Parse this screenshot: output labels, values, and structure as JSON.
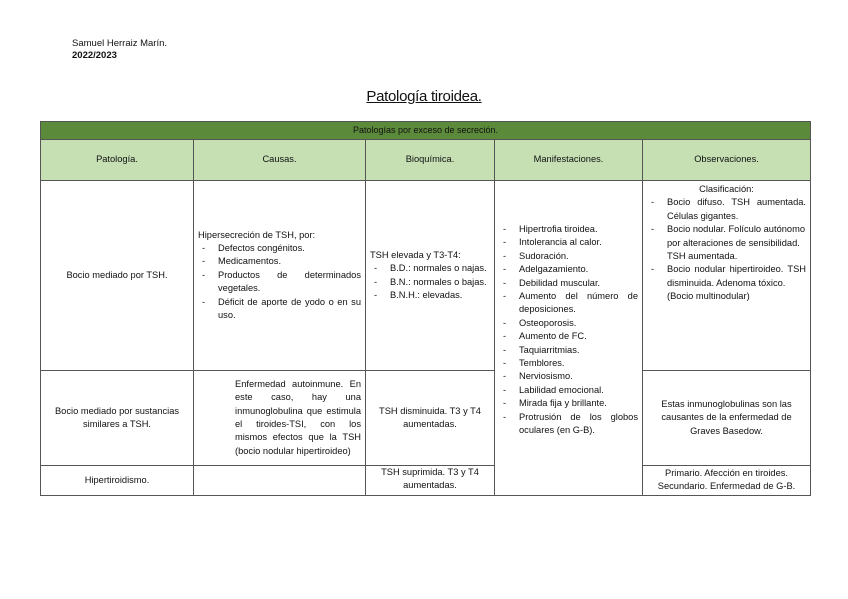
{
  "author": {
    "name": "Samuel Herraiz Marín.",
    "year": "2022/2023"
  },
  "title": "Patología tiroidea.",
  "table": {
    "banner": "Patologías por exceso de secreción.",
    "headers": [
      "Patología.",
      "Causas.",
      "Bioquímica.",
      "Manifestaciones.",
      "Observaciones."
    ],
    "colors": {
      "banner": "#5b8a3a",
      "header": "#c6e0b4"
    },
    "rows": [
      {
        "patologia": "Bocio mediado por TSH.",
        "causas_intro": "Hipersecreción de TSH, por:",
        "causas": [
          "Defectos congénitos.",
          "Medicamentos.",
          "Productos de determinados vegetales.",
          "Déficit de aporte de yodo o en su uso."
        ],
        "bioquimica_intro": "TSH elevada y T3-T4:",
        "bioquimica": [
          "B.D.: normales o najas.",
          "B.N.: normales o bajas.",
          "B.N.H.: elevadas."
        ],
        "observaciones_intro": "Clasificación:",
        "observaciones": [
          "Bocio difuso. TSH aumentada. Células gigantes.",
          "Bocio nodular. Folículo autónomo por alteraciones de sensibilidad. TSH aumentada.",
          "Bocio nodular hipertiroideo. TSH disminuida. Adenoma tóxico."
        ],
        "observaciones_note": "(Bocio multinodular)"
      },
      {
        "patologia": "Bocio mediado por sustancias similares a TSH.",
        "causas_text": "Enfermedad autoinmune. En este caso, hay una inmunoglobulina que estimula el tiroides-TSI, con los mismos efectos que la TSH (bocio nodular hipertiroideo)",
        "bioquimica_text": "TSH disminuida. T3 y T4 aumentadas.",
        "observaciones_text": "Estas inmunoglobulinas son las causantes de la enfermedad de Graves Basedow."
      },
      {
        "patologia": "Hipertiroidismo.",
        "causas_text": "",
        "bioquimica_text": "TSH suprimida. T3 y T4 aumentadas.",
        "observaciones_text": "Primario. Afección en tiroides. Secundario. Enfermedad de G-B."
      }
    ],
    "manifestaciones": [
      "Hipertrofia tiroidea.",
      "Intolerancia al calor.",
      "Sudoración.",
      "Adelgazamiento.",
      "Debilidad muscular.",
      "Aumento del número de deposiciones.",
      "Osteoporosis.",
      "Aumento de FC.",
      "Taquiarritmias.",
      "Temblores.",
      "Nerviosismo.",
      "Labilidad emocional.",
      "Mirada fija y brillante.",
      "Protrusión de los globos oculares (en G-B)."
    ]
  }
}
